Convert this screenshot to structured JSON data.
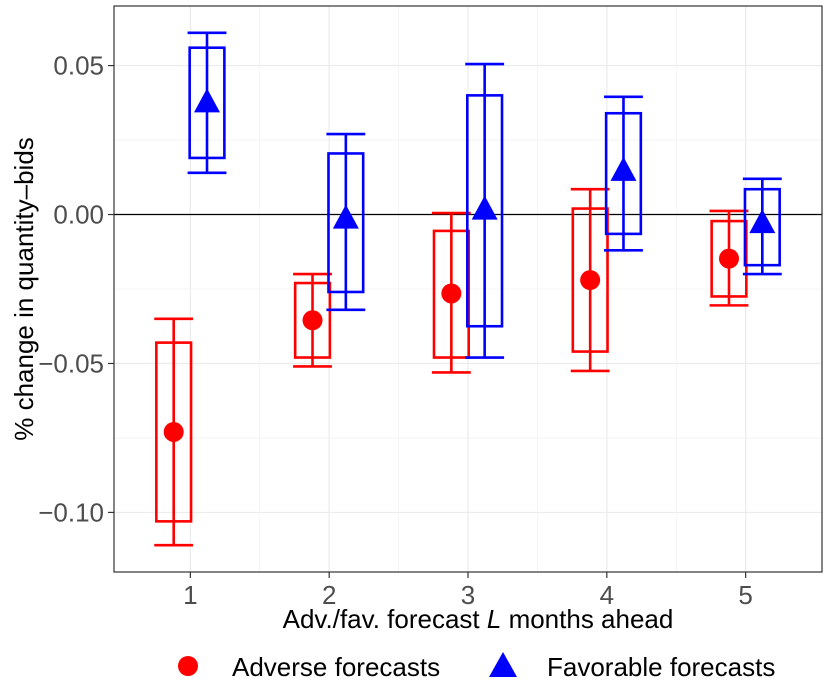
{
  "chart_data": {
    "type": "box-errorbar",
    "xlabel_prefix": "Adv./fav. forecast ",
    "xlabel_var": "L",
    "xlabel_suffix": " months ahead",
    "ylabel": "% change in quantity–bids",
    "categories": [
      "1",
      "2",
      "3",
      "4",
      "5"
    ],
    "xlim": [
      0.45,
      5.55
    ],
    "ylim": [
      -0.12,
      0.07
    ],
    "y_ticks": [
      0.05,
      0.0,
      -0.05,
      -0.1
    ],
    "y_tick_labels": [
      "0.05",
      "0.00",
      "−0.05",
      "−0.10"
    ],
    "hline": 0,
    "grid": true,
    "series": [
      {
        "name": "Adverse forecasts",
        "color": "#ff0000",
        "marker": "circle",
        "offset": -0.12,
        "points": [
          {
            "x": 1,
            "whisker_low": -0.111,
            "box_low": -0.103,
            "estimate": -0.073,
            "box_high": -0.043,
            "whisker_high": -0.035
          },
          {
            "x": 2,
            "whisker_low": -0.051,
            "box_low": -0.048,
            "estimate": -0.0355,
            "box_high": -0.023,
            "whisker_high": -0.02
          },
          {
            "x": 3,
            "whisker_low": -0.053,
            "box_low": -0.048,
            "estimate": -0.0265,
            "box_high": -0.0055,
            "whisker_high": 0.0005
          },
          {
            "x": 4,
            "whisker_low": -0.0525,
            "box_low": -0.046,
            "estimate": -0.022,
            "box_high": 0.002,
            "whisker_high": 0.0085
          },
          {
            "x": 5,
            "whisker_low": -0.0305,
            "box_low": -0.0275,
            "estimate": -0.0148,
            "box_high": -0.0022,
            "whisker_high": 0.0012
          }
        ]
      },
      {
        "name": "Favorable forecasts",
        "color": "#0000ff",
        "marker": "triangle",
        "offset": 0.12,
        "points": [
          {
            "x": 1,
            "whisker_low": 0.014,
            "box_low": 0.019,
            "estimate": 0.0375,
            "box_high": 0.056,
            "whisker_high": 0.061
          },
          {
            "x": 2,
            "whisker_low": -0.032,
            "box_low": -0.026,
            "estimate": -0.0015,
            "box_high": 0.0205,
            "whisker_high": 0.027
          },
          {
            "x": 3,
            "whisker_low": -0.048,
            "box_low": -0.0375,
            "estimate": 0.0015,
            "box_high": 0.04,
            "whisker_high": 0.0505
          },
          {
            "x": 4,
            "whisker_low": -0.012,
            "box_low": -0.0065,
            "estimate": 0.0145,
            "box_high": 0.034,
            "whisker_high": 0.0395
          },
          {
            "x": 5,
            "whisker_low": -0.02,
            "box_low": -0.017,
            "estimate": -0.003,
            "box_high": 0.0085,
            "whisker_high": 0.012
          }
        ]
      }
    ],
    "legend_position": "bottom",
    "legend": [
      "Adverse forecasts",
      "Favorable forecasts"
    ]
  }
}
